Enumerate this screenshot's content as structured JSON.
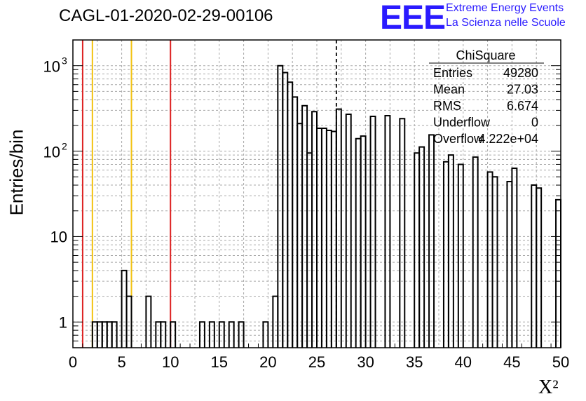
{
  "title": "CAGL-01-2020-02-29-00106",
  "logo": {
    "mark": "EEE",
    "line1": "Extreme Energy Events",
    "line2": "La Scienza nelle Scuole"
  },
  "stats": {
    "title": "ChiSquare",
    "rows": [
      {
        "label": "Entries",
        "value": "49280"
      },
      {
        "label": "Mean",
        "value": "27.03"
      },
      {
        "label": "RMS",
        "value": "6.674"
      },
      {
        "label": "Underflow",
        "value": "0"
      },
      {
        "label": "Overflow",
        "value": "4.222e+04"
      }
    ]
  },
  "colors": {
    "red_line": "#dd2222",
    "yellow_line": "#f2c20f",
    "histogram": "#000000",
    "grid": "#a8a8a8",
    "logo": "#2a1aff"
  },
  "chart_data": {
    "type": "histogram",
    "title": "CAGL-01-2020-02-29-00106",
    "xlabel": "X²",
    "ylabel": "Entries/bin",
    "xlim": [
      0,
      50
    ],
    "ylim": [
      0.5,
      2000
    ],
    "yscale": "log",
    "grid": true,
    "bin_width": 0.5,
    "x_ticks": [
      "0",
      "5",
      "10",
      "15",
      "20",
      "25",
      "30",
      "35",
      "40",
      "45",
      "50"
    ],
    "y_ticks": [
      {
        "value": 1,
        "label": "1"
      },
      {
        "value": 10,
        "label": "10"
      },
      {
        "value": 100,
        "label": "10²"
      },
      {
        "value": 1000,
        "label": "10³"
      }
    ],
    "bins": [
      {
        "x": 2.0,
        "y": 1
      },
      {
        "x": 2.5,
        "y": 1
      },
      {
        "x": 3.0,
        "y": 1
      },
      {
        "x": 3.5,
        "y": 1
      },
      {
        "x": 4.0,
        "y": 1
      },
      {
        "x": 5.0,
        "y": 4
      },
      {
        "x": 5.5,
        "y": 2
      },
      {
        "x": 7.5,
        "y": 2
      },
      {
        "x": 8.5,
        "y": 1
      },
      {
        "x": 9.0,
        "y": 1
      },
      {
        "x": 10.0,
        "y": 1
      },
      {
        "x": 13.0,
        "y": 1
      },
      {
        "x": 14.0,
        "y": 1
      },
      {
        "x": 15.0,
        "y": 1
      },
      {
        "x": 16.0,
        "y": 1
      },
      {
        "x": 17.0,
        "y": 1
      },
      {
        "x": 19.5,
        "y": 1
      },
      {
        "x": 20.5,
        "y": 2
      },
      {
        "x": 21.0,
        "y": 1000
      },
      {
        "x": 21.5,
        "y": 830
      },
      {
        "x": 22.0,
        "y": 640
      },
      {
        "x": 22.5,
        "y": 430
      },
      {
        "x": 23.0,
        "y": 210
      },
      {
        "x": 23.5,
        "y": 340
      },
      {
        "x": 24.0,
        "y": 95
      },
      {
        "x": 24.5,
        "y": 290
      },
      {
        "x": 25.0,
        "y": 185
      },
      {
        "x": 25.5,
        "y": 185
      },
      {
        "x": 26.0,
        "y": 175
      },
      {
        "x": 26.5,
        "y": 170
      },
      {
        "x": 27.0,
        "y": 310
      },
      {
        "x": 28.0,
        "y": 270
      },
      {
        "x": 29.0,
        "y": 140
      },
      {
        "x": 29.5,
        "y": 150
      },
      {
        "x": 30.5,
        "y": 255
      },
      {
        "x": 32.0,
        "y": 260
      },
      {
        "x": 33.5,
        "y": 240
      },
      {
        "x": 35.0,
        "y": 95
      },
      {
        "x": 35.5,
        "y": 112
      },
      {
        "x": 36.5,
        "y": 155
      },
      {
        "x": 38.0,
        "y": 75
      },
      {
        "x": 38.5,
        "y": 90
      },
      {
        "x": 39.5,
        "y": 70
      },
      {
        "x": 41.0,
        "y": 85
      },
      {
        "x": 42.5,
        "y": 57
      },
      {
        "x": 43.0,
        "y": 50
      },
      {
        "x": 44.5,
        "y": 44
      },
      {
        "x": 45.0,
        "y": 63
      },
      {
        "x": 47.0,
        "y": 40
      },
      {
        "x": 47.5,
        "y": 37
      },
      {
        "x": 49.5,
        "y": 27
      }
    ],
    "vertical_lines": [
      {
        "x": 1.0,
        "color": "red"
      },
      {
        "x": 2.0,
        "color": "yellow"
      },
      {
        "x": 6.0,
        "color": "yellow"
      },
      {
        "x": 10.0,
        "color": "red"
      },
      {
        "x": 27.0,
        "color": "black",
        "style": "dashed"
      }
    ]
  }
}
